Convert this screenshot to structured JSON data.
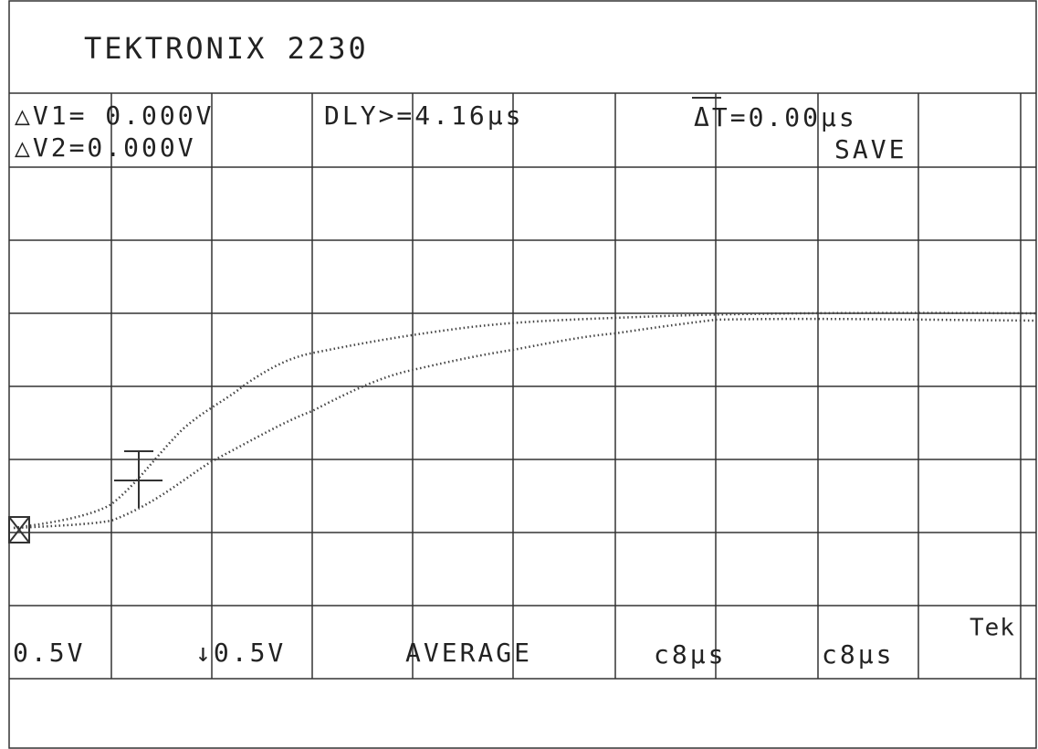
{
  "header": {
    "title": "TEKTRONIX 2230"
  },
  "readouts": {
    "dv1": "△V1= 0.000V",
    "dv2": "△V2=0.000V",
    "delay": "DLY>=4.16µs",
    "delta_t": "ΔT=0.00µs",
    "mode": "SAVE"
  },
  "footer": {
    "ch1": "0.5V",
    "ch2": "↓0.5V",
    "acquisition": "AVERAGE",
    "timebase_a": "c8µs",
    "timebase_b": "c8µs",
    "brand": "Tek"
  }
}
